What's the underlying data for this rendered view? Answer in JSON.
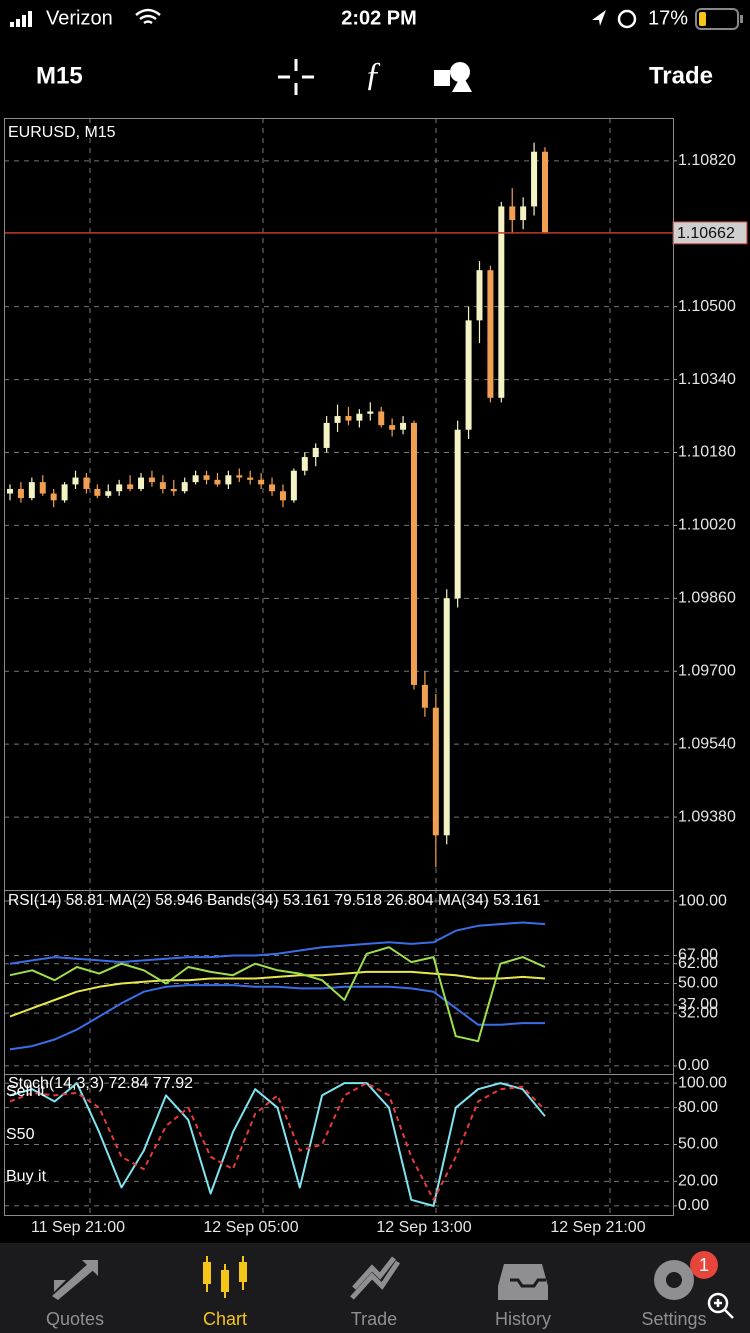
{
  "status_bar": {
    "carrier": "Verizon",
    "time": "2:02 PM",
    "battery": "17%"
  },
  "toolbar": {
    "timeframe": "M15",
    "trade": "Trade"
  },
  "chart_data": [
    {
      "type": "candlestick",
      "title": "EURUSD, M15",
      "open": [
        1.1009,
        1.101,
        1.1008,
        1.10115,
        1.1009,
        1.10075,
        1.1011,
        1.10125,
        1.101,
        1.10085,
        1.10095,
        1.1011,
        1.101,
        1.10125,
        1.10115,
        1.101,
        1.10095,
        1.10115,
        1.1013,
        1.1012,
        1.1011,
        1.1013,
        1.10125,
        1.1012,
        1.1011,
        1.10095,
        1.10075,
        1.1014,
        1.1017,
        1.1019,
        1.10245,
        1.1026,
        1.1025,
        1.10265,
        1.1027,
        1.1024,
        1.1023,
        1.10245,
        1.0967,
        1.0962,
        1.0934,
        1.0986,
        1.1023,
        1.1047,
        1.1058,
        1.103,
        1.1072,
        1.1069,
        1.1072,
        1.1084
      ],
      "high": [
        1.1011,
        1.10115,
        1.10125,
        1.1013,
        1.101,
        1.10115,
        1.1014,
        1.10135,
        1.1011,
        1.1011,
        1.1012,
        1.1013,
        1.10135,
        1.1014,
        1.1013,
        1.1012,
        1.10125,
        1.1014,
        1.1014,
        1.10135,
        1.1014,
        1.10145,
        1.1014,
        1.10135,
        1.10125,
        1.1011,
        1.10145,
        1.1018,
        1.102,
        1.1026,
        1.10285,
        1.1028,
        1.10275,
        1.1029,
        1.1028,
        1.10255,
        1.1026,
        1.1025,
        1.097,
        1.0965,
        1.0988,
        1.1025,
        1.105,
        1.106,
        1.1059,
        1.1073,
        1.1076,
        1.1074,
        1.1086,
        1.1085
      ],
      "low": [
        1.10075,
        1.1007,
        1.10075,
        1.10085,
        1.1006,
        1.1007,
        1.101,
        1.1009,
        1.1008,
        1.1008,
        1.10085,
        1.10095,
        1.10095,
        1.10105,
        1.1009,
        1.10085,
        1.1009,
        1.1011,
        1.1011,
        1.10105,
        1.101,
        1.10115,
        1.1011,
        1.101,
        1.10085,
        1.1006,
        1.1007,
        1.1013,
        1.1015,
        1.1018,
        1.10225,
        1.1024,
        1.10235,
        1.1025,
        1.10235,
        1.10215,
        1.1022,
        1.0966,
        1.096,
        1.0927,
        1.0932,
        1.0984,
        1.1021,
        1.1042,
        1.1029,
        1.1029,
        1.1066,
        1.1067,
        1.107,
        1.1066
      ],
      "close": [
        1.101,
        1.1008,
        1.10115,
        1.1009,
        1.10075,
        1.1011,
        1.10125,
        1.101,
        1.10085,
        1.10095,
        1.1011,
        1.101,
        1.10125,
        1.10115,
        1.101,
        1.10095,
        1.10115,
        1.1013,
        1.1012,
        1.1011,
        1.1013,
        1.10125,
        1.1012,
        1.1011,
        1.10095,
        1.10075,
        1.1014,
        1.1017,
        1.1019,
        1.10245,
        1.1026,
        1.1025,
        1.10265,
        1.1027,
        1.1024,
        1.1023,
        1.10245,
        1.0967,
        1.0962,
        1.0934,
        1.0986,
        1.1023,
        1.1047,
        1.1058,
        1.103,
        1.1072,
        1.1069,
        1.1072,
        1.1084,
        1.10662
      ],
      "up_color": "#f3f3c4",
      "down_color": "#f0a050",
      "ylim": [
        1.0922,
        1.10914
      ],
      "yticks": [
        {
          "value": 1.1082,
          "label": "1.10820"
        },
        {
          "value": 1.105,
          "label": "1.10500"
        },
        {
          "value": 1.1034,
          "label": "1.10340"
        },
        {
          "value": 1.1018,
          "label": "1.10180"
        },
        {
          "value": 1.1002,
          "label": "1.10020"
        },
        {
          "value": 1.0986,
          "label": "1.09860"
        },
        {
          "value": 1.097,
          "label": "1.09700"
        },
        {
          "value": 1.0954,
          "label": "1.09540"
        },
        {
          "value": 1.0938,
          "label": "1.09380"
        }
      ],
      "current_price": 1.10662,
      "current_price_color": "#c0392b",
      "grid": true
    },
    {
      "type": "line",
      "title": "RSI(14) 58.81 MA(2) 58.946 Bands(34) 53.161 79.518 26.804 MA(34) 53.161",
      "series": [
        {
          "color": "#3a6ee8",
          "values": [
            62,
            64,
            66,
            65,
            64,
            63,
            64,
            65,
            66,
            66,
            67,
            67,
            68,
            70,
            72,
            73,
            74,
            75,
            74,
            75,
            82,
            85,
            86,
            87,
            86
          ]
        },
        {
          "color": "#3a6ee8",
          "values": [
            10,
            12,
            16,
            22,
            30,
            38,
            45,
            48,
            49,
            49,
            49,
            48,
            48,
            47,
            47,
            48,
            48,
            48,
            47,
            45,
            35,
            25,
            25,
            26,
            26
          ]
        },
        {
          "color": "#e8e84a",
          "values": [
            30,
            35,
            40,
            45,
            48,
            50,
            51,
            52,
            52,
            53,
            53,
            53,
            54,
            55,
            55,
            56,
            57,
            57,
            57,
            56,
            55,
            53,
            53,
            54,
            53
          ]
        },
        {
          "color": "#9ee04a",
          "values": [
            55,
            58,
            52,
            60,
            56,
            62,
            58,
            50,
            60,
            57,
            55,
            62,
            58,
            56,
            52,
            40,
            68,
            72,
            63,
            66,
            18,
            15,
            62,
            66,
            60
          ]
        }
      ],
      "ylim": [
        -4.9,
        106.7
      ],
      "yticks": [
        {
          "value": 100,
          "label": "100.00"
        },
        {
          "value": 67,
          "label": "67.00"
        },
        {
          "value": 62,
          "label": "62.00"
        },
        {
          "value": 50,
          "label": "50.00"
        },
        {
          "value": 37,
          "label": "37.00"
        },
        {
          "value": 32,
          "label": "32.00"
        },
        {
          "value": 0,
          "label": "0.00"
        }
      ]
    },
    {
      "type": "line",
      "title": "Stoch(14,3,3) 72.84 77.92",
      "series": [
        {
          "color": "#7fe3f0",
          "values": [
            90,
            95,
            85,
            100,
            60,
            15,
            45,
            90,
            70,
            10,
            60,
            95,
            80,
            15,
            90,
            100,
            100,
            80,
            5,
            0,
            80,
            95,
            100,
            95,
            73
          ]
        },
        {
          "color": "#e83a3a",
          "dashed": true,
          "values": [
            85,
            92,
            90,
            92,
            80,
            40,
            30,
            65,
            80,
            40,
            30,
            75,
            90,
            45,
            50,
            90,
            100,
            90,
            40,
            5,
            40,
            85,
            95,
            97,
            78
          ]
        }
      ],
      "level_labels": [
        "Sell it",
        "S50",
        "Buy it"
      ],
      "ylim": [
        -7.4,
        107.4
      ],
      "yticks": [
        {
          "value": 100,
          "label": "100.00"
        },
        {
          "value": 80,
          "label": "80.00"
        },
        {
          "value": 50,
          "label": "50.00"
        },
        {
          "value": 20,
          "label": "20.00"
        },
        {
          "value": 0,
          "label": "0.00"
        }
      ],
      "x_labels": [
        "11 Sep 21:00",
        "12 Sep 05:00",
        "12 Sep 13:00",
        "12 Sep 21:00"
      ]
    }
  ],
  "tab_bar": {
    "tabs": [
      "Quotes",
      "Chart",
      "Trade",
      "History",
      "Settings"
    ],
    "active": 1,
    "badge": "1"
  }
}
